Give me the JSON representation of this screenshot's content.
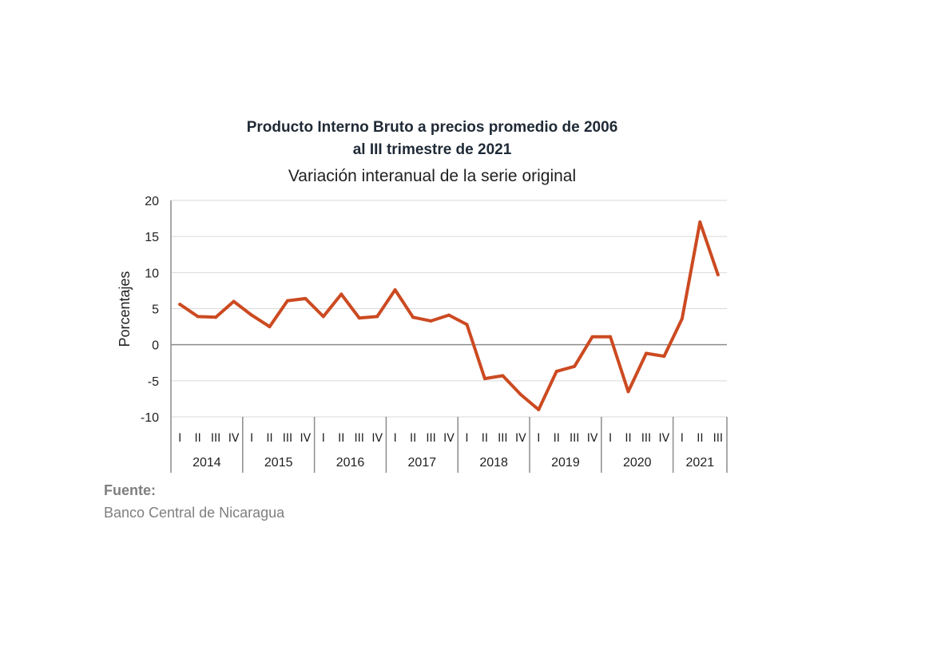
{
  "chart_data": {
    "type": "line",
    "title_line1": "Producto Interno Bruto a precios promedio de 2006",
    "title_line2": "al III trimestre de 2021",
    "subtitle": "Variación interanual de la serie original",
    "ylabel": "Porcentajes",
    "ylim": [
      -10,
      20
    ],
    "yticks": [
      20,
      15,
      10,
      5,
      0,
      -5,
      -10
    ],
    "grid": true,
    "years": [
      "2014",
      "2015",
      "2016",
      "2017",
      "2018",
      "2019",
      "2020",
      "2021"
    ],
    "quarter_labels": [
      "I",
      "II",
      "III",
      "IV",
      "I",
      "II",
      "III",
      "IV",
      "I",
      "II",
      "III",
      "IV",
      "I",
      "II",
      "III",
      "IV",
      "I",
      "II",
      "III",
      "IV",
      "I",
      "II",
      "III",
      "IV",
      "I",
      "II",
      "III",
      "IV",
      "I",
      "II",
      "III"
    ],
    "series": [
      {
        "color": "#cc4a21",
        "values": [
          5.6,
          3.9,
          3.8,
          6.0,
          4.1,
          2.5,
          6.1,
          6.4,
          3.9,
          7.0,
          3.7,
          3.9,
          7.6,
          3.8,
          3.3,
          4.1,
          2.8,
          -4.7,
          -4.3,
          -6.9,
          -9.0,
          -3.7,
          -3.0,
          1.1,
          1.1,
          -6.5,
          -1.2,
          -1.6,
          3.6,
          17.0,
          9.7
        ]
      }
    ]
  },
  "source": {
    "heading": "Fuente:",
    "text": "Banco Central de Nicaragua"
  }
}
